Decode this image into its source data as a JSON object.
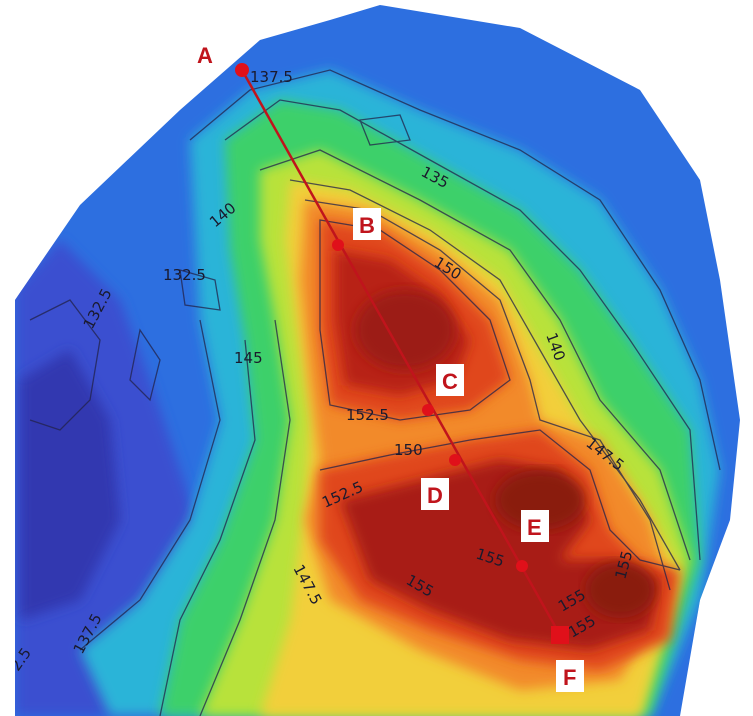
{
  "colors": {
    "profile_line": "#c0141c",
    "marker": "#e0101a",
    "label_box": "#ffffff",
    "label_text": "#c0141c",
    "point_a_text": "#c0141c",
    "contour_line": "#22224a"
  },
  "points": [
    {
      "id": "A",
      "label": "A"
    },
    {
      "id": "B",
      "label": "B"
    },
    {
      "id": "C",
      "label": "C"
    },
    {
      "id": "D",
      "label": "D"
    },
    {
      "id": "E",
      "label": "E"
    },
    {
      "id": "F",
      "label": "F"
    }
  ],
  "contour_labels": [
    "137.5",
    "135",
    "140",
    "132.5",
    "132.5",
    "150",
    "145",
    "140",
    "152.5",
    "150",
    "147.5",
    "152.5",
    "155",
    "155",
    "155",
    "155",
    "155",
    "147.5",
    "137.5",
    "2.5"
  ]
}
